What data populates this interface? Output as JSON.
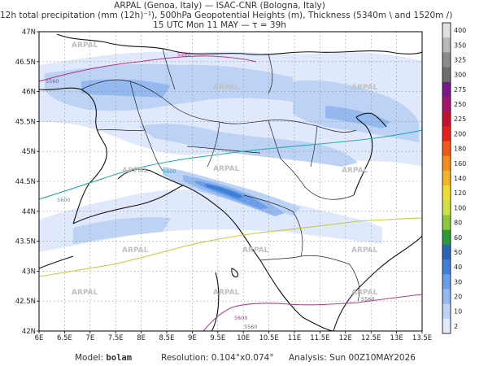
{
  "header": {
    "line1": "ARPAL (Genoa, Italy)  —  ISAC-CNR (Bologna, Italy)",
    "line2": "12h total precipitation (mm (12h)⁻¹), 500hPa Geopotential Heights (m), Thickness (5340m \\ and 1520m /)",
    "line3": "15 UTC Mon 11 MAY  —  τ = 39h"
  },
  "axes": {
    "lon_ticks": [
      "6E",
      "6.5E",
      "7E",
      "7.5E",
      "8E",
      "8.5E",
      "9E",
      "9.5E",
      "10E",
      "10.5E",
      "11E",
      "11.5E",
      "12E",
      "12.5E",
      "13E",
      "13.5E"
    ],
    "lat_ticks": [
      "47N",
      "46.5N",
      "46N",
      "45.5N",
      "45N",
      "44.5N",
      "44N",
      "43.5N",
      "43N",
      "42.5N",
      "42N"
    ]
  },
  "colorbar": {
    "levels": [
      "400",
      "350",
      "325",
      "300",
      "275",
      "250",
      "225",
      "200",
      "180",
      "160",
      "140",
      "120",
      "100",
      "80",
      "60",
      "50",
      "40",
      "30",
      "20",
      "10",
      "2"
    ],
    "colors": [
      "#e0e0e0",
      "#b8b8b8",
      "#8c8c8c",
      "#6e6e6e",
      "#7a1a8a",
      "#a4166e",
      "#c8102e",
      "#e8201a",
      "#f05a14",
      "#f68c1e",
      "#f4b428",
      "#f2dc32",
      "#cfe046",
      "#8cc83c",
      "#2c9a3c",
      "#2a64b4",
      "#3f7fd6",
      "#6a9ee6",
      "#93b9ef",
      "#bcd3f6",
      "#dfe9fb"
    ]
  },
  "contours": {
    "labels": [
      "5560",
      "5560",
      "5600",
      "5600",
      "5560",
      "5600",
      "5560"
    ]
  },
  "watermarks": [
    "ARPAL",
    "ARPAL",
    "ARPAL",
    "ARPAL",
    "ARPAL",
    "ARPAL",
    "ARPAL",
    "ARPAL",
    "ARPAL",
    "ARPAL",
    "ARPAL",
    "ARPAL"
  ],
  "footer": {
    "model_label": "Model:",
    "model_value": "bolam",
    "resolution_label": "Resolution:",
    "resolution_value": "0.104°x0.074°",
    "analysis_label": "Analysis:",
    "analysis_value": "Sun 00Z10MAY2026"
  }
}
